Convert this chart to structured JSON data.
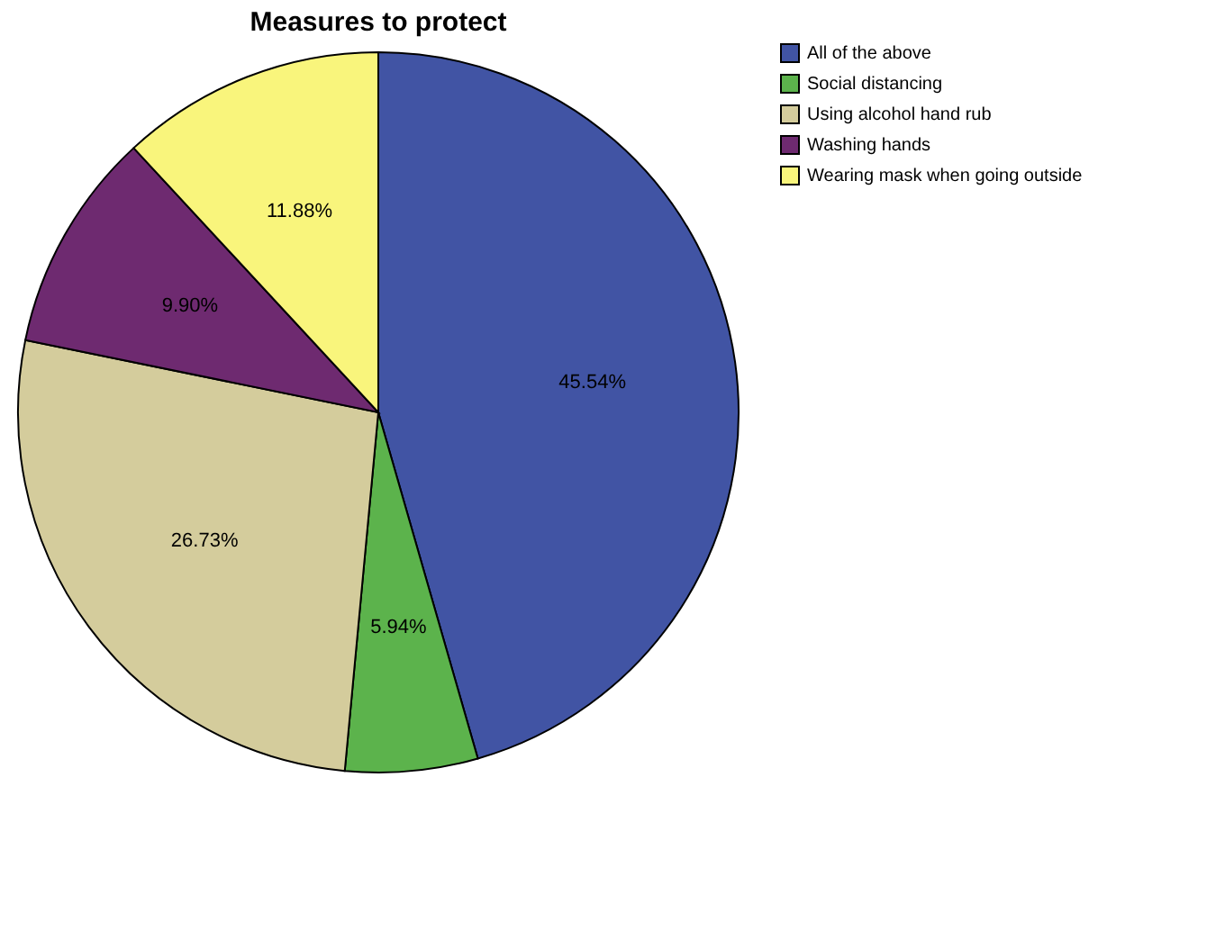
{
  "chart_data": {
    "type": "pie",
    "title": "Measures to protect",
    "categories": [
      "All of the above",
      "Social distancing",
      "Using alcohol hand rub",
      "Washing hands",
      "Wearing mask when going outside"
    ],
    "values": [
      45.54,
      5.94,
      26.73,
      9.9,
      11.88
    ],
    "value_labels": [
      "45.54%",
      "5.94%",
      "26.73%",
      "9.90%",
      "11.88%"
    ],
    "colors": [
      "#4154a4",
      "#5cb34c",
      "#d4cc9c",
      "#6e2a70",
      "#f9f57c"
    ],
    "legend": "top right"
  }
}
